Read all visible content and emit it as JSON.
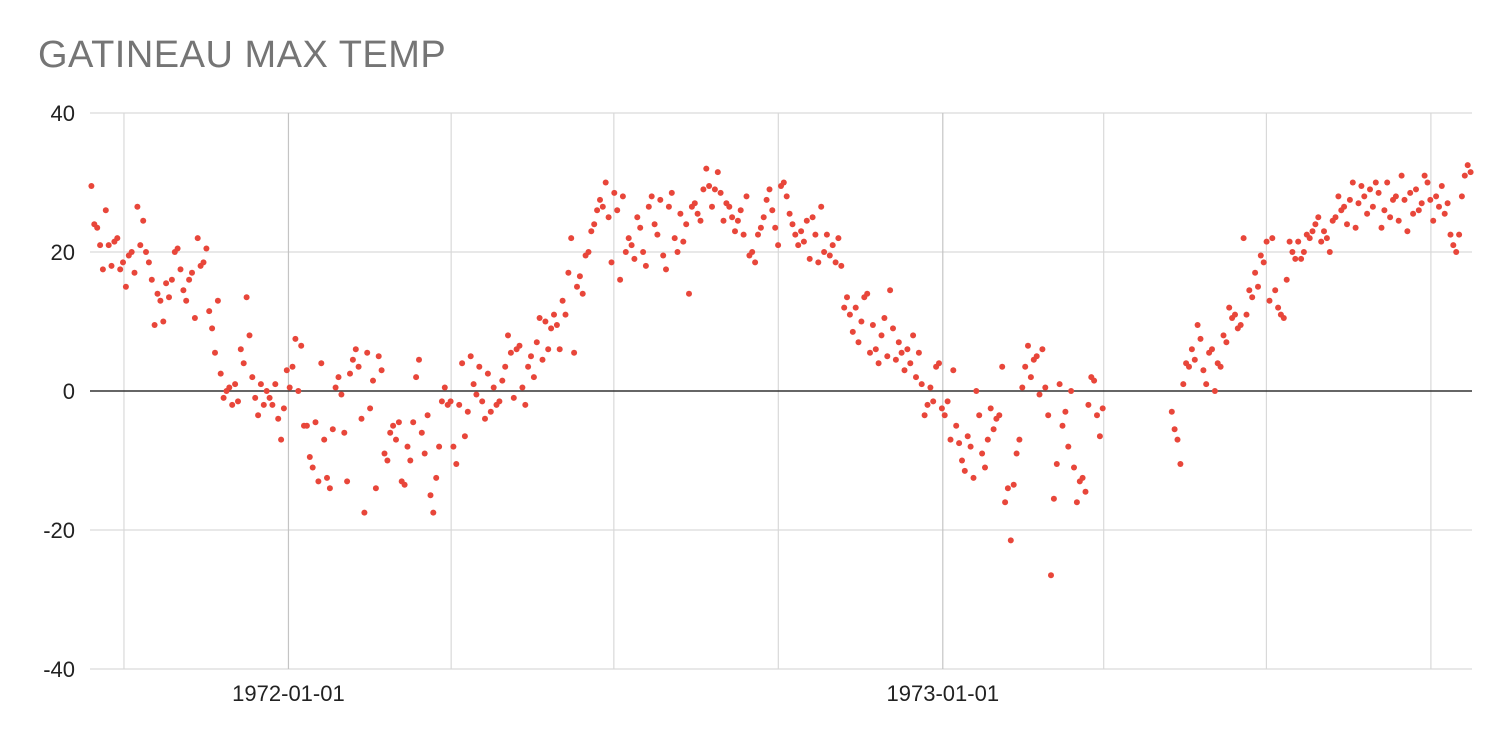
{
  "chart_data": {
    "type": "scatter",
    "title": "GATINEAU MAX TEMP",
    "xlabel": "",
    "ylabel": "",
    "ylim": [
      -40,
      40
    ],
    "xlim": [
      "1971-09-12",
      "1973-10-24"
    ],
    "yticks": [
      "40",
      "20",
      "0",
      "-20",
      "-40"
    ],
    "xticks": [
      "1972-01-01",
      "1973-01-01"
    ],
    "xtick_dates": [
      "1972-01-01",
      "1973-01-01"
    ],
    "grid": true,
    "legend": "none",
    "colors": {
      "point": "#e8463a",
      "gridline": "#d9d9d9",
      "zero_line": "#333333",
      "title": "#757575"
    },
    "series": [
      {
        "values": [
          29.5,
          24.0,
          23.5,
          21.0,
          17.5,
          26.0,
          21.0,
          18.0,
          21.5,
          22.0,
          17.5,
          18.5,
          15.0,
          19.5,
          20.0,
          17.0,
          26.5,
          21.0,
          24.5,
          20.0,
          18.5,
          16.0,
          9.5,
          14.0,
          13.0,
          10.0,
          15.5,
          13.5,
          16.0,
          20.0,
          20.5,
          17.5,
          14.5,
          13.0,
          16.0,
          17.0,
          10.5,
          22.0,
          18.0,
          18.5,
          20.5,
          11.5,
          9.0,
          5.5,
          13.0,
          2.5,
          -1.0,
          0.0,
          0.5,
          -2.0,
          1.0,
          -1.5,
          6.0,
          4.0,
          13.5,
          8.0,
          2.0,
          -1.0,
          -3.5,
          1.0,
          -2.0,
          0.0,
          -1.0,
          -2.0,
          1.0,
          -4.0,
          -7.0,
          -2.5,
          3.0,
          0.5,
          3.5,
          7.5,
          0.0,
          6.5,
          -5.0,
          -5.0,
          -9.5,
          -11.0,
          -4.5,
          -13.0,
          4.0,
          -7.0,
          -12.5,
          -14.0,
          -5.5,
          0.5,
          2.0,
          -0.5,
          -6.0,
          -13.0,
          2.5,
          4.5,
          6.0,
          3.5,
          -4.0,
          -17.5,
          5.5,
          -2.5,
          1.5,
          -14.0,
          5.0,
          3.0,
          -9.0,
          -10.0,
          -6.0,
          -5.0,
          -7.0,
          -4.5,
          -13.0,
          -13.5,
          -8.0,
          -10.0,
          -4.5,
          2.0,
          4.5,
          -6.0,
          -9.0,
          -3.5,
          -15.0,
          -17.5,
          -12.5,
          -8.0,
          -1.5,
          0.5,
          -2.0,
          -1.5,
          -8.0,
          -10.5,
          -2.0,
          4.0,
          -6.5,
          -3.0,
          5.0,
          1.0,
          -0.5,
          3.5,
          -1.5,
          -4.0,
          2.5,
          -3.0,
          0.5,
          -2.0,
          -1.5,
          1.5,
          3.5,
          8.0,
          5.5,
          -1.0,
          6.0,
          6.5,
          0.5,
          -2.0,
          3.5,
          5.0,
          2.0,
          7.0,
          10.5,
          4.5,
          10.0,
          6.0,
          9.0,
          11.0,
          9.5,
          6.0,
          13.0,
          11.0,
          17.0,
          22.0,
          5.5,
          15.0,
          16.5,
          14.0,
          19.5,
          20.0,
          23.0,
          24.0,
          26.0,
          27.5,
          26.5,
          30.0,
          25.0,
          18.5,
          28.5,
          26.0,
          16.0,
          28.0,
          20.0,
          22.0,
          21.0,
          19.0,
          25.0,
          23.5,
          20.0,
          18.0,
          26.5,
          28.0,
          24.0,
          22.5,
          27.5,
          19.5,
          17.5,
          26.5,
          28.5,
          22.0,
          20.0,
          25.5,
          21.5,
          24.0,
          14.0,
          26.5,
          27.0,
          25.5,
          24.5,
          29.0,
          32.0,
          29.5,
          26.5,
          29.0,
          31.5,
          28.5,
          24.5,
          27.0,
          26.5,
          25.0,
          23.0,
          24.5,
          26.0,
          22.5,
          28.0,
          19.5,
          20.0,
          18.5,
          22.5,
          23.5,
          25.0,
          27.5,
          29.0,
          26.0,
          23.5,
          21.0,
          29.5,
          30.0,
          28.0,
          25.5,
          24.0,
          22.5,
          21.0,
          23.0,
          21.5,
          24.5,
          19.0,
          25.0,
          22.5,
          18.5,
          26.5,
          20.0,
          22.5,
          19.5,
          21.0,
          18.5,
          22.0,
          18.0,
          12.0,
          13.5,
          11.0,
          8.5,
          12.0,
          7.0,
          10.0,
          13.5,
          14.0,
          5.5,
          9.5,
          6.0,
          4.0,
          8.0,
          10.5,
          5.0,
          14.5,
          9.0,
          4.5,
          7.0,
          5.5,
          3.0,
          6.0,
          4.0,
          8.0,
          2.0,
          5.5,
          1.0,
          -3.5,
          -2.0,
          0.5,
          -1.5,
          3.5,
          4.0,
          -2.5,
          -3.5,
          -1.5,
          -7.0,
          3.0,
          -5.0,
          -7.5,
          -10.0,
          -11.5,
          -6.5,
          -8.0,
          -12.5,
          0.0,
          -3.5,
          -9.0,
          -11.0,
          -7.0,
          -2.5,
          -5.5,
          -4.0,
          -3.5,
          3.5,
          -16.0,
          -14.0,
          -21.5,
          -13.5,
          -9.0,
          -7.0,
          0.5,
          3.5,
          6.5,
          2.0,
          4.5,
          5.0,
          -0.5,
          6.0,
          0.5,
          -3.5,
          -26.5,
          -15.5,
          -10.5,
          1.0,
          -5.0,
          -3.0,
          -8.0,
          0.0,
          -11.0,
          -16.0,
          -13.0,
          -12.5,
          -14.5,
          -2.0,
          2.0,
          1.5,
          -3.5,
          -6.5,
          -2.5,
          -3.0,
          -5.5,
          -7.0,
          -10.5,
          1.0,
          4.0,
          3.5,
          6.0,
          4.5,
          9.5,
          7.5,
          3.0,
          1.0,
          5.5,
          6.0,
          0.0,
          4.0,
          3.5,
          8.0,
          7.0,
          12.0,
          10.5,
          11.0,
          9.0,
          9.5,
          22.0,
          11.0,
          14.5,
          13.5,
          17.0,
          15.0,
          19.5,
          18.5,
          21.5,
          13.0,
          22.0,
          14.5,
          12.0,
          11.0,
          10.5,
          16.0,
          21.5,
          20.0,
          19.0,
          21.5,
          19.0,
          20.0,
          22.5,
          22.0,
          23.0,
          24.0,
          25.0,
          21.5,
          23.0,
          22.0,
          20.0,
          24.5,
          25.0,
          28.0,
          26.0,
          26.5,
          24.0,
          27.5,
          30.0,
          23.5,
          27.0,
          29.5,
          28.0,
          25.5,
          29.0,
          26.5,
          30.0,
          28.5,
          23.5,
          26.0,
          30.0,
          25.0,
          27.5,
          28.0,
          24.5,
          31.0,
          27.5,
          23.0,
          28.5,
          25.5,
          29.0,
          26.0,
          27.0,
          31.0,
          30.0,
          27.5,
          24.5,
          28.0,
          26.5,
          29.5,
          25.5,
          27.0,
          22.5,
          21.0,
          20.0,
          22.5,
          28.0,
          31.0,
          32.5,
          31.5
        ]
      }
    ]
  }
}
